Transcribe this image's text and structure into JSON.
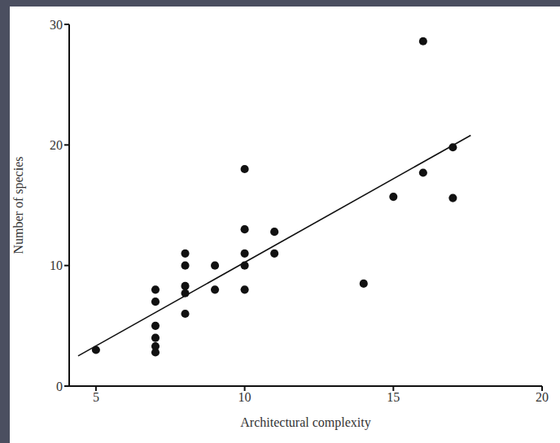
{
  "chart_data": {
    "type": "scatter",
    "x_label": "Architectural complexity",
    "y_label": "Number of species",
    "xlim": [
      4.1,
      20
    ],
    "xticks": [
      5,
      10,
      15,
      20
    ],
    "ylim": [
      0,
      30
    ],
    "yticks": [
      0,
      10,
      20,
      30
    ],
    "grid": false,
    "series": [
      {
        "type": "scatter",
        "marker": "circle",
        "color": "#111111",
        "x": [
          5,
          7,
          7,
          7,
          7,
          7,
          7,
          8,
          8,
          8,
          8,
          8,
          9,
          9,
          10,
          10,
          10,
          10,
          10,
          11,
          11,
          14,
          15,
          16,
          16,
          17,
          17
        ],
        "values": [
          3,
          8,
          7,
          5,
          4,
          3.3,
          2.8,
          11,
          10,
          8.3,
          7.7,
          6,
          10,
          8,
          18,
          13,
          11,
          10,
          8,
          12.8,
          11,
          8.5,
          15.7,
          28.6,
          17.7,
          19.8,
          15.6
        ]
      },
      {
        "type": "line",
        "line_style": "solid",
        "color": "#111111",
        "x": [
          4.4,
          17.6
        ],
        "values": [
          2.5,
          20.8
        ]
      }
    ]
  }
}
